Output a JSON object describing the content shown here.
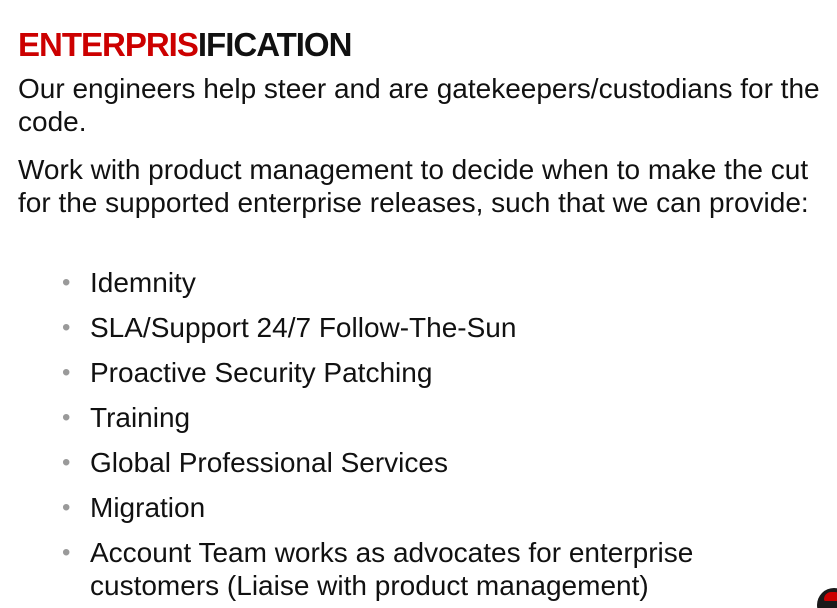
{
  "slide": {
    "title_accent": "ENTERPRIS",
    "title_rest": "IFICATION",
    "paragraphs": [
      "Our engineers help steer and are gatekeepers/custodians for the code.",
      "Work with product management to decide when to make the cut for the supported enterprise releases, such that we can provide:"
    ],
    "bullet_glyph": "•",
    "bullets": [
      "Idemnity",
      "SLA/Support 24/7 Follow-The-Sun",
      "Proactive Security Patching",
      "Training",
      "Global Professional Services",
      "Migration",
      "Account Team works as advocates for enterprise customers (Liaise with product management)"
    ]
  },
  "colors": {
    "accent": "#cc0000",
    "text": "#111111",
    "bullet": "#9a9a9a",
    "background": "#ffffff"
  },
  "icons": {
    "corner_logo": "brand-logo-icon"
  }
}
